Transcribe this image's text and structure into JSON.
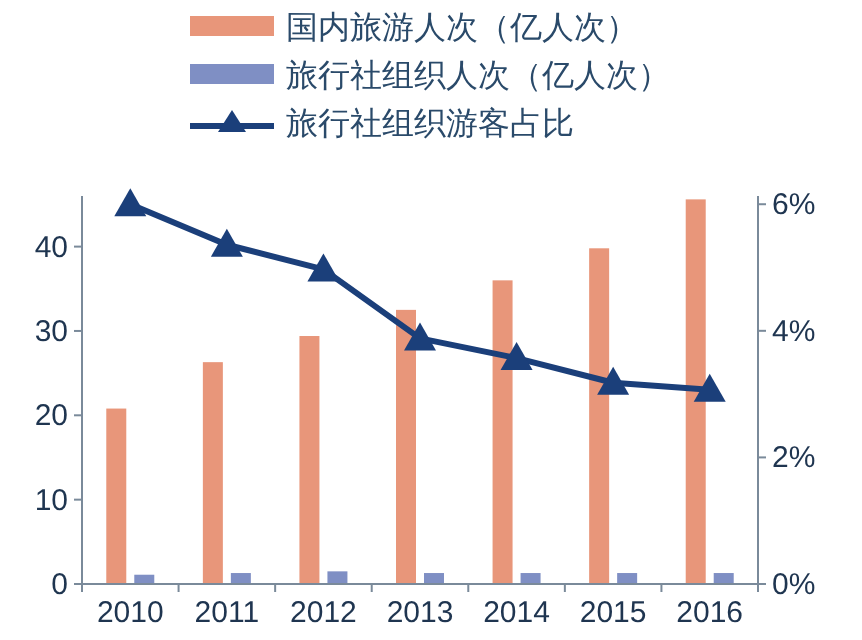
{
  "chart_data": {
    "type": "bar",
    "categories": [
      "2010",
      "2011",
      "2012",
      "2013",
      "2014",
      "2015",
      "2016"
    ],
    "series": [
      {
        "name": "国内旅游人次（亿人次）",
        "color": "#e8967a",
        "values": [
          20.8,
          26.3,
          29.4,
          32.5,
          36.0,
          39.8,
          45.6
        ]
      },
      {
        "name": "旅行社组织人次（亿人次）",
        "color": "#7f8fc4",
        "values": [
          1.1,
          1.3,
          1.5,
          1.3,
          1.3,
          1.3,
          1.3
        ]
      },
      {
        "name": "旅行社组织游客占比",
        "color": "#1b3f7a",
        "type": "line",
        "axis": "y2",
        "marker": "triangle",
        "values": [
          6.0,
          5.36,
          4.97,
          3.88,
          3.57,
          3.18,
          3.07
        ]
      }
    ],
    "ylim": [
      0,
      46
    ],
    "yticks": [
      0,
      10,
      20,
      30,
      40
    ],
    "y2lim": [
      0,
      6.13
    ],
    "y2ticks": [
      {
        "value": 0,
        "label": "0%"
      },
      {
        "value": 2,
        "label": "2%"
      },
      {
        "value": 4,
        "label": "4%"
      },
      {
        "value": 6,
        "label": "6%"
      }
    ],
    "legend": "top left",
    "grid": false
  }
}
